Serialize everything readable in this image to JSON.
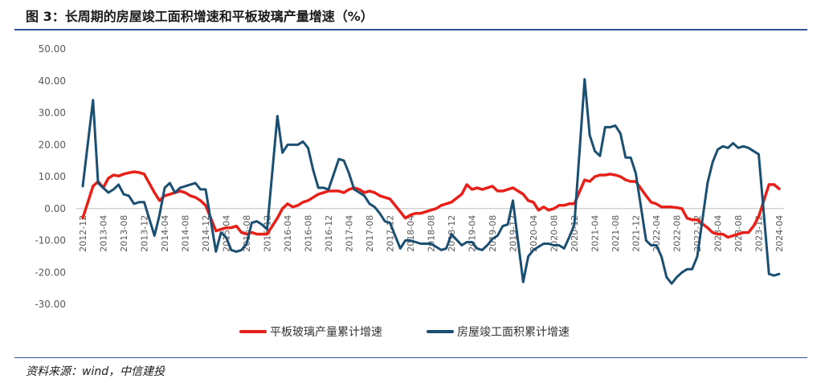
{
  "header": {
    "title": "图 3：长周期的房屋竣工面积增速和平板玻璃产量增速（%）"
  },
  "footer": {
    "source": "资料来源：wind，中信建投"
  },
  "chart_data": {
    "type": "line",
    "title": "",
    "xlabel": "",
    "ylabel": "",
    "ylim": [
      -30,
      50
    ],
    "yticks": [
      "50.00",
      "40.00",
      "30.00",
      "20.00",
      "10.00",
      "0.00",
      "-10.00",
      "-20.00",
      "-30.00"
    ],
    "xticks": [
      "2012-12",
      "2013-04",
      "2013-08",
      "2013-12",
      "2014-04",
      "2014-08",
      "2014-12",
      "2015-04",
      "2015-08",
      "2015-12",
      "2016-04",
      "2016-08",
      "2016-12",
      "2017-04",
      "2017-08",
      "2017-12",
      "2018-04",
      "2018-08",
      "2018-12",
      "2019-04",
      "2019-08",
      "2019-12",
      "2020-04",
      "2020-08",
      "2020-12",
      "2021-04",
      "2021-08",
      "2021-12",
      "2022-04",
      "2022-08",
      "2022-12",
      "2023-04",
      "2023-08",
      "2023-12",
      "2024-04"
    ],
    "legend_position": "bottom",
    "grid": false,
    "colors": {
      "glass": "#e8201a",
      "completion": "#1b4f72"
    },
    "series": [
      {
        "name": "平板玻璃产量累计增速",
        "key": "glass",
        "points": [
          [
            "2012-12",
            -3.0
          ],
          [
            "2013-02",
            7.0
          ],
          [
            "2013-03",
            8.5
          ],
          [
            "2013-04",
            6.5
          ],
          [
            "2013-05",
            9.5
          ],
          [
            "2013-06",
            10.5
          ],
          [
            "2013-07",
            10.2
          ],
          [
            "2013-08",
            10.8
          ],
          [
            "2013-09",
            11.2
          ],
          [
            "2013-10",
            11.5
          ],
          [
            "2013-11",
            11.3
          ],
          [
            "2013-12",
            10.8
          ],
          [
            "2014-02",
            5.0
          ],
          [
            "2014-03",
            2.5
          ],
          [
            "2014-04",
            4.0
          ],
          [
            "2014-05",
            4.5
          ],
          [
            "2014-06",
            5.0
          ],
          [
            "2014-07",
            5.5
          ],
          [
            "2014-08",
            5.0
          ],
          [
            "2014-09",
            4.0
          ],
          [
            "2014-10",
            3.5
          ],
          [
            "2014-11",
            2.5
          ],
          [
            "2014-12",
            1.0
          ],
          [
            "2015-02",
            -7.0
          ],
          [
            "2015-03",
            -6.5
          ],
          [
            "2015-04",
            -6.0
          ],
          [
            "2015-05",
            -6.0
          ],
          [
            "2015-06",
            -5.5
          ],
          [
            "2015-07",
            -7.5
          ],
          [
            "2015-08",
            -8.0
          ],
          [
            "2015-09",
            -7.5
          ],
          [
            "2015-10",
            -8.0
          ],
          [
            "2015-11",
            -8.0
          ],
          [
            "2015-12",
            -8.0
          ],
          [
            "2016-02",
            -3.0
          ],
          [
            "2016-03",
            0.0
          ],
          [
            "2016-04",
            1.5
          ],
          [
            "2016-05",
            0.5
          ],
          [
            "2016-06",
            1.0
          ],
          [
            "2016-07",
            2.0
          ],
          [
            "2016-08",
            2.5
          ],
          [
            "2016-09",
            3.5
          ],
          [
            "2016-10",
            4.5
          ],
          [
            "2016-11",
            5.0
          ],
          [
            "2016-12",
            5.5
          ],
          [
            "2017-02",
            5.5
          ],
          [
            "2017-03",
            5.0
          ],
          [
            "2017-04",
            6.0
          ],
          [
            "2017-05",
            6.5
          ],
          [
            "2017-06",
            6.0
          ],
          [
            "2017-07",
            5.0
          ],
          [
            "2017-08",
            5.5
          ],
          [
            "2017-09",
            5.0
          ],
          [
            "2017-10",
            4.0
          ],
          [
            "2017-11",
            3.5
          ],
          [
            "2017-12",
            3.0
          ],
          [
            "2018-02",
            -1.0
          ],
          [
            "2018-03",
            -3.0
          ],
          [
            "2018-04",
            -2.0
          ],
          [
            "2018-05",
            -1.5
          ],
          [
            "2018-06",
            -1.5
          ],
          [
            "2018-07",
            -1.0
          ],
          [
            "2018-08",
            -0.5
          ],
          [
            "2018-09",
            0.0
          ],
          [
            "2018-10",
            1.0
          ],
          [
            "2018-11",
            1.5
          ],
          [
            "2018-12",
            2.0
          ],
          [
            "2019-02",
            4.5
          ],
          [
            "2019-03",
            7.5
          ],
          [
            "2019-04",
            6.0
          ],
          [
            "2019-05",
            6.5
          ],
          [
            "2019-06",
            6.0
          ],
          [
            "2019-07",
            6.5
          ],
          [
            "2019-08",
            7.0
          ],
          [
            "2019-09",
            5.5
          ],
          [
            "2019-10",
            5.5
          ],
          [
            "2019-11",
            6.0
          ],
          [
            "2019-12",
            6.5
          ],
          [
            "2020-02",
            4.5
          ],
          [
            "2020-03",
            2.5
          ],
          [
            "2020-04",
            2.0
          ],
          [
            "2020-05",
            -0.5
          ],
          [
            "2020-06",
            0.5
          ],
          [
            "2020-07",
            -0.5
          ],
          [
            "2020-08",
            0.0
          ],
          [
            "2020-09",
            1.0
          ],
          [
            "2020-10",
            1.0
          ],
          [
            "2020-11",
            1.5
          ],
          [
            "2020-12",
            1.5
          ],
          [
            "2021-02",
            9.0
          ],
          [
            "2021-03",
            8.5
          ],
          [
            "2021-04",
            10.0
          ],
          [
            "2021-05",
            10.5
          ],
          [
            "2021-06",
            10.5
          ],
          [
            "2021-07",
            10.8
          ],
          [
            "2021-08",
            10.5
          ],
          [
            "2021-09",
            10.0
          ],
          [
            "2021-10",
            9.0
          ],
          [
            "2021-11",
            8.5
          ],
          [
            "2021-12",
            8.5
          ],
          [
            "2022-02",
            4.0
          ],
          [
            "2022-03",
            2.0
          ],
          [
            "2022-04",
            1.5
          ],
          [
            "2022-05",
            0.5
          ],
          [
            "2022-06",
            0.5
          ],
          [
            "2022-07",
            0.5
          ],
          [
            "2022-08",
            0.3
          ],
          [
            "2022-09",
            0.0
          ],
          [
            "2022-10",
            -3.0
          ],
          [
            "2022-11",
            -3.5
          ],
          [
            "2022-12",
            -3.5
          ],
          [
            "2023-02",
            -6.0
          ],
          [
            "2023-03",
            -7.5
          ],
          [
            "2023-04",
            -8.0
          ],
          [
            "2023-05",
            -8.0
          ],
          [
            "2023-06",
            -9.0
          ],
          [
            "2023-07",
            -8.5
          ],
          [
            "2023-08",
            -8.0
          ],
          [
            "2023-09",
            -7.5
          ],
          [
            "2023-10",
            -7.5
          ],
          [
            "2023-11",
            -5.5
          ],
          [
            "2023-12",
            -2.5
          ],
          [
            "2024-02",
            7.5
          ],
          [
            "2024-03",
            7.5
          ],
          [
            "2024-04",
            6.2
          ]
        ]
      },
      {
        "name": "房屋竣工面积累计增速",
        "key": "completion",
        "points": [
          [
            "2012-12",
            7.0
          ],
          [
            "2013-02",
            34.0
          ],
          [
            "2013-03",
            8.0
          ],
          [
            "2013-04",
            6.5
          ],
          [
            "2013-05",
            5.0
          ],
          [
            "2013-06",
            6.0
          ],
          [
            "2013-07",
            7.5
          ],
          [
            "2013-08",
            4.5
          ],
          [
            "2013-09",
            4.0
          ],
          [
            "2013-10",
            1.5
          ],
          [
            "2013-11",
            2.0
          ],
          [
            "2013-12",
            2.0
          ],
          [
            "2014-02",
            -8.5
          ],
          [
            "2014-03",
            -2.0
          ],
          [
            "2014-04",
            6.5
          ],
          [
            "2014-05",
            8.0
          ],
          [
            "2014-06",
            5.0
          ],
          [
            "2014-07",
            6.5
          ],
          [
            "2014-08",
            7.0
          ],
          [
            "2014-09",
            7.5
          ],
          [
            "2014-10",
            8.0
          ],
          [
            "2014-11",
            6.0
          ],
          [
            "2014-12",
            6.0
          ],
          [
            "2015-02",
            -13.5
          ],
          [
            "2015-03",
            -7.5
          ],
          [
            "2015-04",
            -9.0
          ],
          [
            "2015-05",
            -13.0
          ],
          [
            "2015-06",
            -13.5
          ],
          [
            "2015-07",
            -13.0
          ],
          [
            "2015-08",
            -11.0
          ],
          [
            "2015-09",
            -4.5
          ],
          [
            "2015-10",
            -4.0
          ],
          [
            "2015-11",
            -5.0
          ],
          [
            "2015-12",
            -6.5
          ],
          [
            "2016-02",
            29.0
          ],
          [
            "2016-03",
            17.5
          ],
          [
            "2016-04",
            20.0
          ],
          [
            "2016-05",
            20.0
          ],
          [
            "2016-06",
            20.0
          ],
          [
            "2016-07",
            21.0
          ],
          [
            "2016-08",
            19.0
          ],
          [
            "2016-09",
            12.0
          ],
          [
            "2016-10",
            6.5
          ],
          [
            "2016-11",
            6.5
          ],
          [
            "2016-12",
            6.0
          ],
          [
            "2017-02",
            15.5
          ],
          [
            "2017-03",
            15.0
          ],
          [
            "2017-04",
            11.0
          ],
          [
            "2017-05",
            6.0
          ],
          [
            "2017-06",
            5.0
          ],
          [
            "2017-07",
            4.0
          ],
          [
            "2017-08",
            1.5
          ],
          [
            "2017-09",
            0.5
          ],
          [
            "2017-10",
            -1.5
          ],
          [
            "2017-11",
            -4.0
          ],
          [
            "2017-12",
            -4.5
          ],
          [
            "2018-02",
            -12.5
          ],
          [
            "2018-03",
            -10.0
          ],
          [
            "2018-04",
            -10.0
          ],
          [
            "2018-05",
            -10.5
          ],
          [
            "2018-06",
            -11.0
          ],
          [
            "2018-07",
            -11.0
          ],
          [
            "2018-08",
            -11.0
          ],
          [
            "2018-09",
            -12.0
          ],
          [
            "2018-10",
            -13.0
          ],
          [
            "2018-11",
            -12.5
          ],
          [
            "2018-12",
            -8.0
          ],
          [
            "2019-02",
            -11.5
          ],
          [
            "2019-03",
            -10.5
          ],
          [
            "2019-04",
            -10.5
          ],
          [
            "2019-05",
            -12.5
          ],
          [
            "2019-06",
            -13.0
          ],
          [
            "2019-07",
            -11.5
          ],
          [
            "2019-08",
            -9.5
          ],
          [
            "2019-09",
            -8.5
          ],
          [
            "2019-10",
            -5.5
          ],
          [
            "2019-11",
            -5.0
          ],
          [
            "2019-12",
            2.5
          ],
          [
            "2020-02",
            -23.0
          ],
          [
            "2020-03",
            -15.0
          ],
          [
            "2020-04",
            -13.0
          ],
          [
            "2020-05",
            -12.0
          ],
          [
            "2020-06",
            -11.0
          ],
          [
            "2020-07",
            -11.0
          ],
          [
            "2020-08",
            -11.5
          ],
          [
            "2020-09",
            -11.5
          ],
          [
            "2020-10",
            -12.5
          ],
          [
            "2020-11",
            -9.0
          ],
          [
            "2020-12",
            -5.0
          ],
          [
            "2021-02",
            40.5
          ],
          [
            "2021-03",
            23.0
          ],
          [
            "2021-04",
            18.0
          ],
          [
            "2021-05",
            16.5
          ],
          [
            "2021-06",
            25.5
          ],
          [
            "2021-07",
            25.5
          ],
          [
            "2021-08",
            26.0
          ],
          [
            "2021-09",
            23.5
          ],
          [
            "2021-10",
            16.0
          ],
          [
            "2021-11",
            16.0
          ],
          [
            "2021-12",
            11.0
          ],
          [
            "2022-02",
            -10.0
          ],
          [
            "2022-03",
            -11.5
          ],
          [
            "2022-04",
            -11.5
          ],
          [
            "2022-05",
            -15.0
          ],
          [
            "2022-06",
            -21.5
          ],
          [
            "2022-07",
            -23.5
          ],
          [
            "2022-08",
            -21.5
          ],
          [
            "2022-09",
            -20.0
          ],
          [
            "2022-10",
            -19.0
          ],
          [
            "2022-11",
            -19.0
          ],
          [
            "2022-12",
            -15.0
          ],
          [
            "2023-02",
            8.0
          ],
          [
            "2023-03",
            14.5
          ],
          [
            "2023-04",
            18.5
          ],
          [
            "2023-05",
            19.5
          ],
          [
            "2023-06",
            19.0
          ],
          [
            "2023-07",
            20.5
          ],
          [
            "2023-08",
            19.0
          ],
          [
            "2023-09",
            19.5
          ],
          [
            "2023-10",
            19.0
          ],
          [
            "2023-11",
            18.0
          ],
          [
            "2023-12",
            17.0
          ],
          [
            "2024-02",
            -20.5
          ],
          [
            "2024-03",
            -21.0
          ],
          [
            "2024-04",
            -20.5
          ]
        ]
      }
    ]
  }
}
